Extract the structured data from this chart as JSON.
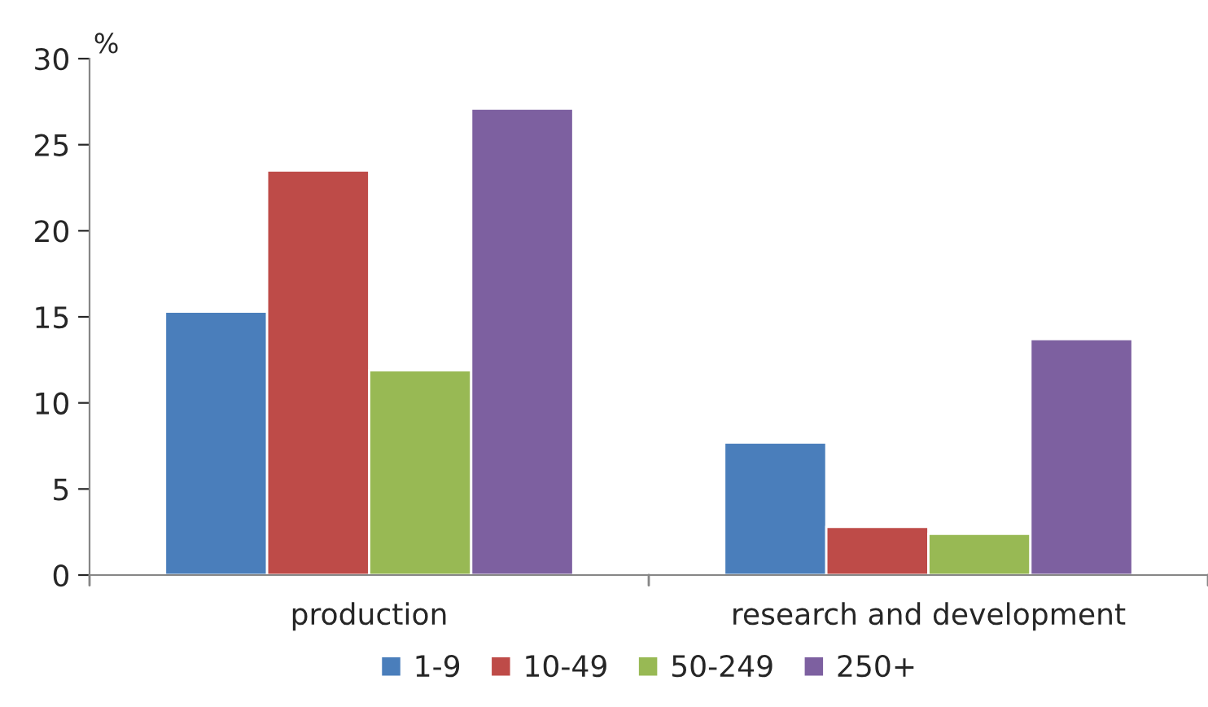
{
  "chart_data": {
    "type": "bar",
    "ylabel": "%",
    "categories": [
      "production",
      "research and development"
    ],
    "series": [
      {
        "name": "1-9",
        "color": "#4a7ebb",
        "values": [
          15.3,
          7.7
        ]
      },
      {
        "name": "10-49",
        "color": "#be4b48",
        "values": [
          23.5,
          2.8
        ]
      },
      {
        "name": "50-249",
        "color": "#98b954",
        "values": [
          11.9,
          2.4
        ]
      },
      {
        "name": "250+",
        "color": "#7d60a0",
        "values": [
          27.1,
          13.7
        ]
      }
    ],
    "ylim": [
      0,
      30
    ],
    "yticks": [
      0,
      5,
      10,
      15,
      20,
      25,
      30
    ],
    "grid": false,
    "legend": "bottom"
  }
}
